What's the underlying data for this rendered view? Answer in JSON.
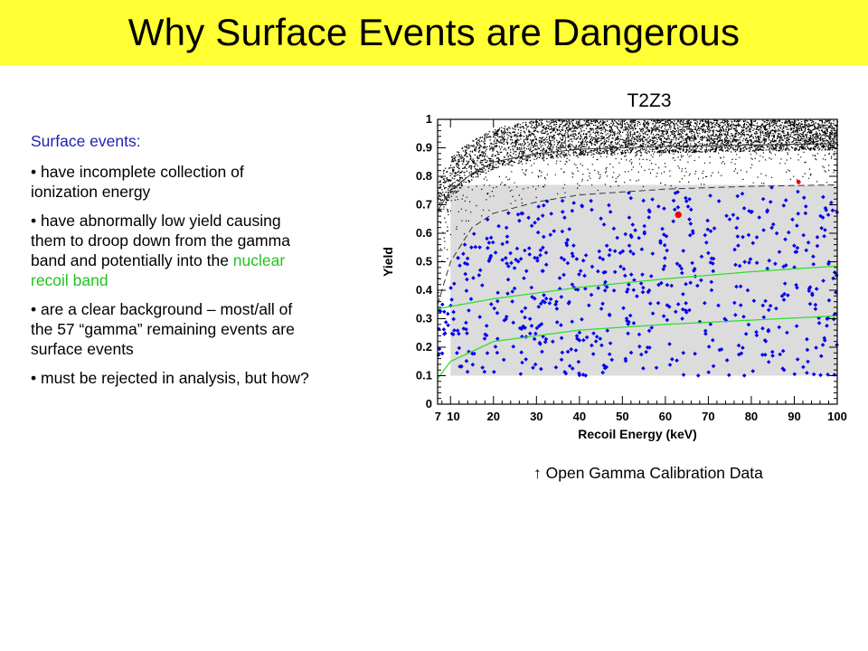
{
  "slide": {
    "title": "Why Surface Events are Dangerous",
    "lead": "Surface events:",
    "bullets": [
      {
        "text": "• have incomplete collection of ionization energy"
      },
      {
        "pre": "• have abnormally low yield causing them to droop down from the gamma band and potentially into the ",
        "highlight": "nuclear recoil band",
        "post": ""
      },
      {
        "text": "• are a clear background – most/all of the 57 “gamma” remaining events are surface events"
      },
      {
        "text": "• must be rejected in analysis, but how?"
      }
    ],
    "caption": "↑ Open Gamma Calibration Data"
  },
  "colors": {
    "title_bg": "#ffff33",
    "lead_text": "#1f1fb4",
    "highlight_text": "#22c322",
    "surface_points": "#0000ee",
    "band_lines": "#33dd33",
    "shaded_region": "#dcdcdc"
  },
  "chart_data": {
    "type": "scatter",
    "title": "T2Z3",
    "xlabel": "Recoil Energy (keV)",
    "ylabel": "Yield",
    "xlim": [
      7,
      100
    ],
    "ylim": [
      0,
      1
    ],
    "x_ticks": [
      "7",
      "10",
      "20",
      "30",
      "40",
      "50",
      "60",
      "70",
      "80",
      "90",
      "100"
    ],
    "y_ticks": [
      "0",
      "0.1",
      "0.2",
      "0.3",
      "0.4",
      "0.5",
      "0.6",
      "0.7",
      "0.8",
      "0.9",
      "1"
    ],
    "grid": false,
    "shaded_region": {
      "x": [
        10,
        100
      ],
      "y": [
        0.1,
        0.77
      ]
    },
    "curves": [
      {
        "name": "gamma band upper",
        "style": "solid black",
        "x": [
          7,
          10,
          15,
          20,
          30,
          40,
          60,
          80,
          100
        ],
        "y": [
          0.68,
          0.75,
          0.81,
          0.85,
          0.88,
          0.895,
          0.905,
          0.91,
          0.915
        ]
      },
      {
        "name": "gamma band lower",
        "style": "dashed black",
        "x": [
          7,
          10,
          15,
          20,
          30,
          40,
          60,
          80,
          100
        ],
        "y": [
          0.35,
          0.5,
          0.62,
          0.67,
          0.71,
          0.735,
          0.755,
          0.765,
          0.77
        ]
      },
      {
        "name": "nuclear recoil upper",
        "style": "solid green",
        "x": [
          7,
          20,
          40,
          60,
          80,
          100
        ],
        "y": [
          0.335,
          0.37,
          0.41,
          0.44,
          0.465,
          0.485
        ]
      },
      {
        "name": "nuclear recoil lower",
        "style": "solid green",
        "x": [
          7,
          10,
          20,
          40,
          60,
          80,
          100
        ],
        "y": [
          0.09,
          0.15,
          0.22,
          0.26,
          0.28,
          0.295,
          0.31
        ]
      }
    ],
    "series": [
      {
        "color": "black",
        "marker": "dot",
        "description_region": "dense gamma band, yield ~0.75-1.0, plus sparse points"
      },
      {
        "color": "blue",
        "marker": "diamond",
        "description_region": "surface events scattered yield 0.1-0.77, 10-100 keV"
      },
      {
        "color": "red",
        "marker": "circle",
        "points": [
          [
            63,
            0.665
          ],
          [
            91,
            0.78
          ]
        ]
      }
    ]
  }
}
